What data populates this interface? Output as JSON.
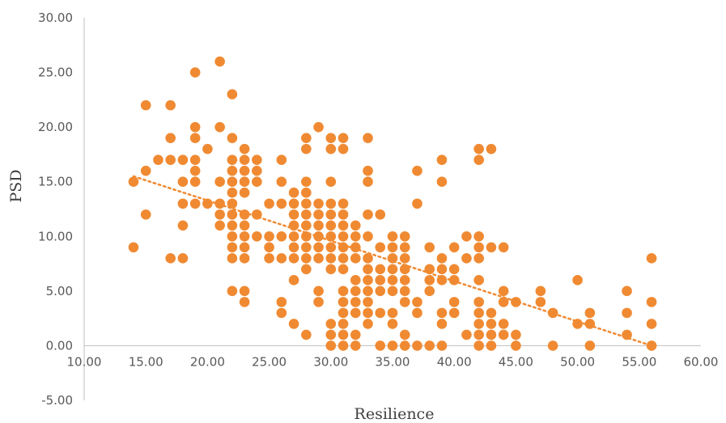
{
  "chart_data": {
    "type": "scatter",
    "title": "",
    "xlabel": "Resilience",
    "ylabel": "PSD",
    "xlim": [
      10,
      60
    ],
    "ylim": [
      -5,
      30
    ],
    "x_ticks": [
      "10.00",
      "15.00",
      "20.00",
      "25.00",
      "30.00",
      "35.00",
      "40.00",
      "45.00",
      "50.00",
      "55.00",
      "60.00"
    ],
    "y_ticks": [
      "-5.00",
      "0.00",
      "5.00",
      "10.00",
      "15.00",
      "20.00",
      "25.00",
      "30.00"
    ],
    "grid": false,
    "marker_color": "#F08A32",
    "trendline": {
      "type": "linear",
      "style": "dotted",
      "color": "#F08A32",
      "x": [
        14,
        56
      ],
      "y": [
        15.5,
        0
      ]
    },
    "points": [
      [
        14,
        15
      ],
      [
        14,
        9
      ],
      [
        15,
        22
      ],
      [
        15,
        16
      ],
      [
        15,
        12
      ],
      [
        16,
        17
      ],
      [
        17,
        22
      ],
      [
        17,
        19
      ],
      [
        17,
        17
      ],
      [
        17,
        8
      ],
      [
        18,
        17
      ],
      [
        18,
        15
      ],
      [
        18,
        13
      ],
      [
        18,
        11
      ],
      [
        18,
        8
      ],
      [
        19,
        25
      ],
      [
        19,
        20
      ],
      [
        19,
        19
      ],
      [
        19,
        17
      ],
      [
        19,
        16
      ],
      [
        19,
        15
      ],
      [
        19,
        13
      ],
      [
        20,
        18
      ],
      [
        20,
        13
      ],
      [
        21,
        26
      ],
      [
        21,
        20
      ],
      [
        21,
        15
      ],
      [
        21,
        13
      ],
      [
        21,
        12
      ],
      [
        21,
        11
      ],
      [
        22,
        23
      ],
      [
        22,
        19
      ],
      [
        22,
        17
      ],
      [
        22,
        16
      ],
      [
        22,
        15
      ],
      [
        22,
        14
      ],
      [
        22,
        13
      ],
      [
        22,
        12
      ],
      [
        22,
        11
      ],
      [
        22,
        10
      ],
      [
        22,
        9
      ],
      [
        22,
        8
      ],
      [
        22,
        5
      ],
      [
        23,
        18
      ],
      [
        23,
        17
      ],
      [
        23,
        16
      ],
      [
        23,
        15
      ],
      [
        23,
        14
      ],
      [
        23,
        12
      ],
      [
        23,
        11
      ],
      [
        23,
        10
      ],
      [
        23,
        9
      ],
      [
        23,
        8
      ],
      [
        23,
        5
      ],
      [
        23,
        4
      ],
      [
        24,
        17
      ],
      [
        24,
        16
      ],
      [
        24,
        15
      ],
      [
        24,
        12
      ],
      [
        24,
        10
      ],
      [
        25,
        13
      ],
      [
        25,
        10
      ],
      [
        25,
        9
      ],
      [
        25,
        8
      ],
      [
        26,
        17
      ],
      [
        26,
        15
      ],
      [
        26,
        13
      ],
      [
        26,
        10
      ],
      [
        26,
        8
      ],
      [
        26,
        4
      ],
      [
        26,
        3
      ],
      [
        27,
        14
      ],
      [
        27,
        13
      ],
      [
        27,
        12
      ],
      [
        27,
        11
      ],
      [
        27,
        10
      ],
      [
        27,
        9
      ],
      [
        27,
        8
      ],
      [
        27,
        6
      ],
      [
        27,
        2
      ],
      [
        28,
        19
      ],
      [
        28,
        18
      ],
      [
        28,
        15
      ],
      [
        28,
        14
      ],
      [
        28,
        13
      ],
      [
        28,
        12
      ],
      [
        28,
        11
      ],
      [
        28,
        10
      ],
      [
        28,
        9
      ],
      [
        28,
        8
      ],
      [
        28,
        7
      ],
      [
        28,
        1
      ],
      [
        29,
        20
      ],
      [
        29,
        13
      ],
      [
        29,
        12
      ],
      [
        29,
        11
      ],
      [
        29,
        10
      ],
      [
        29,
        9
      ],
      [
        29,
        8
      ],
      [
        29,
        5
      ],
      [
        29,
        4
      ],
      [
        30,
        19
      ],
      [
        30,
        18
      ],
      [
        30,
        15
      ],
      [
        30,
        13
      ],
      [
        30,
        12
      ],
      [
        30,
        11
      ],
      [
        30,
        10
      ],
      [
        30,
        9
      ],
      [
        30,
        8
      ],
      [
        30,
        7
      ],
      [
        30,
        2
      ],
      [
        30,
        1
      ],
      [
        30,
        0
      ],
      [
        31,
        19
      ],
      [
        31,
        18
      ],
      [
        31,
        13
      ],
      [
        31,
        12
      ],
      [
        31,
        11
      ],
      [
        31,
        10
      ],
      [
        31,
        9
      ],
      [
        31,
        8
      ],
      [
        31,
        7
      ],
      [
        31,
        5
      ],
      [
        31,
        4
      ],
      [
        31,
        3
      ],
      [
        31,
        2
      ],
      [
        31,
        1
      ],
      [
        31,
        0
      ],
      [
        32,
        11
      ],
      [
        32,
        10
      ],
      [
        32,
        9
      ],
      [
        32,
        8
      ],
      [
        32,
        6
      ],
      [
        32,
        5
      ],
      [
        32,
        4
      ],
      [
        32,
        3
      ],
      [
        32,
        1
      ],
      [
        32,
        0
      ],
      [
        33,
        19
      ],
      [
        33,
        16
      ],
      [
        33,
        15
      ],
      [
        33,
        12
      ],
      [
        33,
        10
      ],
      [
        33,
        8
      ],
      [
        33,
        7
      ],
      [
        33,
        6
      ],
      [
        33,
        5
      ],
      [
        33,
        4
      ],
      [
        33,
        3
      ],
      [
        33,
        2
      ],
      [
        34,
        12
      ],
      [
        34,
        9
      ],
      [
        34,
        7
      ],
      [
        34,
        6
      ],
      [
        34,
        5
      ],
      [
        34,
        3
      ],
      [
        34,
        0
      ],
      [
        35,
        10
      ],
      [
        35,
        9
      ],
      [
        35,
        8
      ],
      [
        35,
        7
      ],
      [
        35,
        6
      ],
      [
        35,
        5
      ],
      [
        35,
        3
      ],
      [
        35,
        2
      ],
      [
        35,
        0
      ],
      [
        36,
        10
      ],
      [
        36,
        9
      ],
      [
        36,
        8
      ],
      [
        36,
        7
      ],
      [
        36,
        6
      ],
      [
        36,
        5
      ],
      [
        36,
        4
      ],
      [
        36,
        1
      ],
      [
        36,
        0
      ],
      [
        37,
        16
      ],
      [
        37,
        13
      ],
      [
        37,
        4
      ],
      [
        37,
        3
      ],
      [
        37,
        0
      ],
      [
        38,
        9
      ],
      [
        38,
        7
      ],
      [
        38,
        6
      ],
      [
        38,
        5
      ],
      [
        38,
        0
      ],
      [
        39,
        17
      ],
      [
        39,
        15
      ],
      [
        39,
        8
      ],
      [
        39,
        7
      ],
      [
        39,
        6
      ],
      [
        39,
        3
      ],
      [
        39,
        2
      ],
      [
        39,
        0
      ],
      [
        40,
        9
      ],
      [
        40,
        7
      ],
      [
        40,
        6
      ],
      [
        40,
        4
      ],
      [
        40,
        3
      ],
      [
        41,
        10
      ],
      [
        41,
        8
      ],
      [
        41,
        1
      ],
      [
        42,
        18
      ],
      [
        42,
        17
      ],
      [
        42,
        10
      ],
      [
        42,
        9
      ],
      [
        42,
        8
      ],
      [
        42,
        6
      ],
      [
        42,
        4
      ],
      [
        42,
        3
      ],
      [
        42,
        2
      ],
      [
        42,
        1
      ],
      [
        42,
        0
      ],
      [
        43,
        18
      ],
      [
        43,
        9
      ],
      [
        43,
        3
      ],
      [
        43,
        2
      ],
      [
        43,
        1
      ],
      [
        43,
        0
      ],
      [
        44,
        9
      ],
      [
        44,
        5
      ],
      [
        44,
        4
      ],
      [
        44,
        2
      ],
      [
        44,
        1
      ],
      [
        45,
        4
      ],
      [
        45,
        1
      ],
      [
        45,
        0
      ],
      [
        47,
        5
      ],
      [
        47,
        4
      ],
      [
        48,
        3
      ],
      [
        48,
        0
      ],
      [
        50,
        6
      ],
      [
        50,
        2
      ],
      [
        51,
        3
      ],
      [
        51,
        2
      ],
      [
        51,
        0
      ],
      [
        54,
        5
      ],
      [
        54,
        3
      ],
      [
        54,
        1
      ],
      [
        56,
        8
      ],
      [
        56,
        4
      ],
      [
        56,
        2
      ],
      [
        56,
        0
      ]
    ]
  }
}
